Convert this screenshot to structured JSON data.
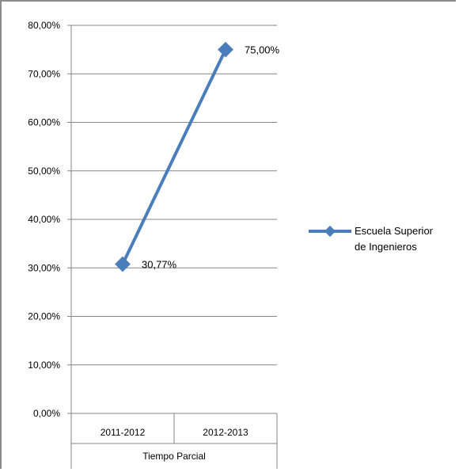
{
  "chart_data": {
    "type": "line",
    "categories": [
      "2011-2012",
      "2012-2013"
    ],
    "group_label": "Tiempo Parcial",
    "series": [
      {
        "name": "Escuela Superior de Ingenieros",
        "values": [
          30.77,
          75.0
        ],
        "color": "#4a7ebb"
      }
    ],
    "data_labels": [
      "30,77%",
      "75,00%"
    ],
    "y_ticks": [
      "0,00%",
      "10,00%",
      "20,00%",
      "30,00%",
      "40,00%",
      "50,00%",
      "60,00%",
      "70,00%",
      "80,00%"
    ],
    "ylim": [
      0,
      80
    ],
    "grid": true,
    "legend": {
      "position": "right",
      "lines": [
        "Escuela Superior",
        "de Ingenieros"
      ]
    },
    "colors": {
      "series": "#4a7ebb",
      "grid": "#868686"
    }
  }
}
